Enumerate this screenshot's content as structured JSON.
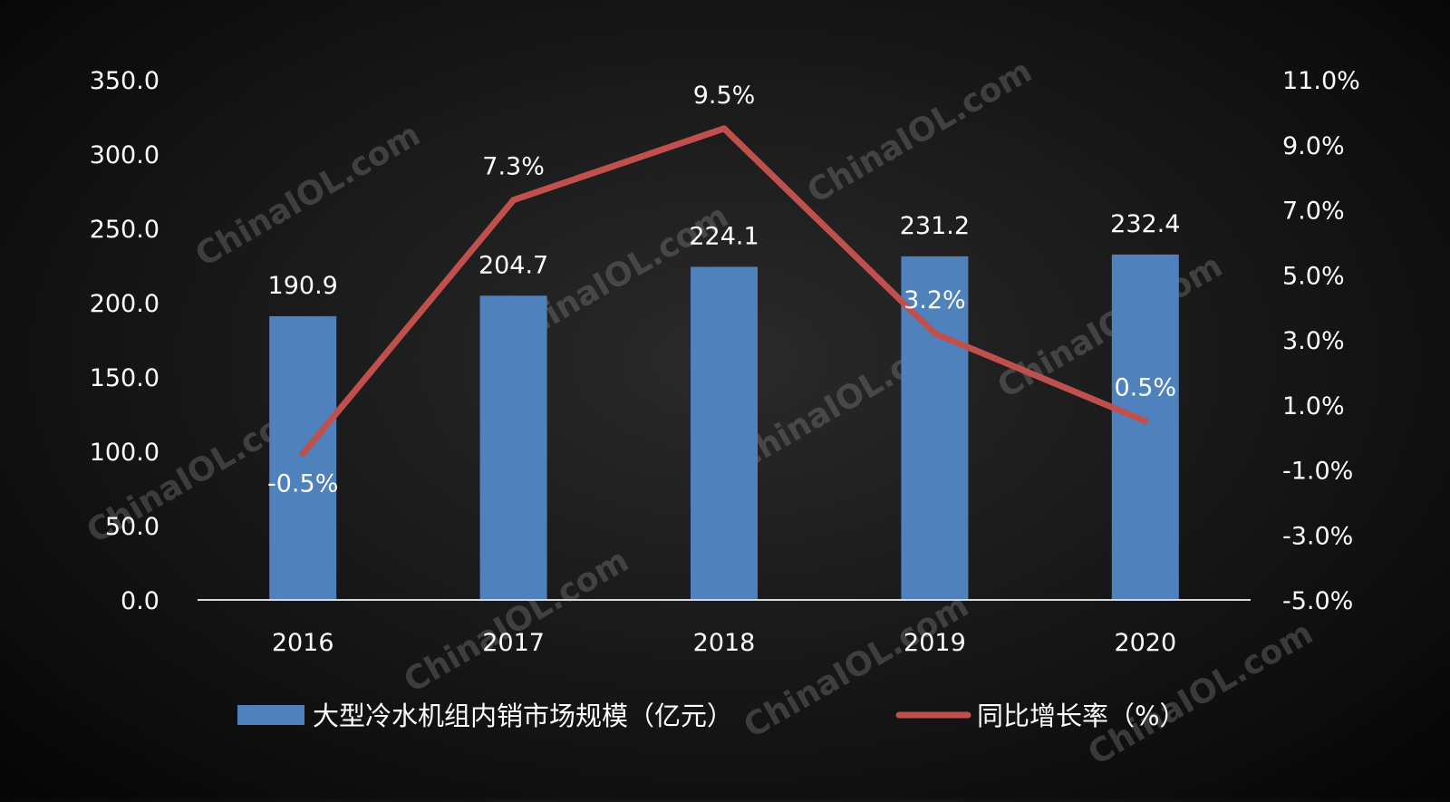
{
  "chart_data": {
    "type": "bar",
    "categories": [
      "2016",
      "2017",
      "2018",
      "2019",
      "2020"
    ],
    "series": [
      {
        "name": "大型冷水机组内销市场规模（亿元）",
        "type": "bar",
        "axis": "left",
        "values": [
          190.9,
          204.7,
          224.1,
          231.2,
          232.4
        ],
        "labels": [
          "190.9",
          "204.7",
          "224.1",
          "231.2",
          "232.4"
        ],
        "color": "#4f81bd"
      },
      {
        "name": "同比增长率（%）",
        "type": "line",
        "axis": "right",
        "values": [
          -0.5,
          7.3,
          9.5,
          3.2,
          0.5
        ],
        "labels": [
          "-0.5%",
          "7.3%",
          "9.5%",
          "3.2%",
          "0.5%"
        ],
        "color": "#c0504d"
      }
    ],
    "y_left": {
      "ylim": [
        0,
        350
      ],
      "ticks": [
        0,
        50,
        100,
        150,
        200,
        250,
        300,
        350
      ],
      "tick_labels": [
        "0.0",
        "50.0",
        "100.0",
        "150.0",
        "200.0",
        "250.0",
        "300.0",
        "350.0"
      ]
    },
    "y_right": {
      "ylim": [
        -5,
        11
      ],
      "ticks": [
        -5,
        -3,
        -1,
        1,
        3,
        5,
        7,
        9,
        11
      ],
      "tick_labels": [
        "-5.0%",
        "-3.0%",
        "-1.0%",
        "1.0%",
        "3.0%",
        "5.0%",
        "7.0%",
        "9.0%",
        "11.0%"
      ]
    },
    "grid": false,
    "legend_position": "bottom",
    "watermark": "ChinaIOL.com"
  }
}
